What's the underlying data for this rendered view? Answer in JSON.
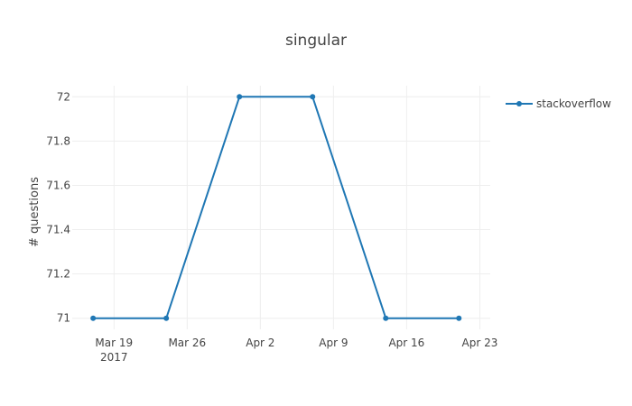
{
  "chart_data": {
    "type": "line",
    "title": "singular",
    "xlabel": "",
    "ylabel": "# questions",
    "x_ticks": [
      {
        "date": "2017-03-19",
        "label": "Mar 19",
        "sublabel": "2017"
      },
      {
        "date": "2017-03-26",
        "label": "Mar 26",
        "sublabel": ""
      },
      {
        "date": "2017-04-02",
        "label": "Apr 2",
        "sublabel": ""
      },
      {
        "date": "2017-04-09",
        "label": "Apr 9",
        "sublabel": ""
      },
      {
        "date": "2017-04-16",
        "label": "Apr 16",
        "sublabel": ""
      },
      {
        "date": "2017-04-23",
        "label": "Apr 23",
        "sublabel": ""
      }
    ],
    "y_ticks": [
      {
        "value": 71,
        "label": "71"
      },
      {
        "value": 71.2,
        "label": "71.2"
      },
      {
        "value": 71.4,
        "label": "71.4"
      },
      {
        "value": 71.6,
        "label": "71.6"
      },
      {
        "value": 71.8,
        "label": "71.8"
      },
      {
        "value": 72,
        "label": "72"
      }
    ],
    "xlim": [
      "2017-03-15",
      "2017-04-24"
    ],
    "ylim": [
      70.95,
      72.05
    ],
    "grid": true,
    "legend_position": "top-right",
    "series": [
      {
        "name": "stackoverflow",
        "color": "#1f77b4",
        "x": [
          "2017-03-17",
          "2017-03-24",
          "2017-03-31",
          "2017-04-07",
          "2017-04-14",
          "2017-04-21"
        ],
        "y": [
          71,
          71,
          72,
          72,
          71,
          71
        ]
      }
    ]
  }
}
